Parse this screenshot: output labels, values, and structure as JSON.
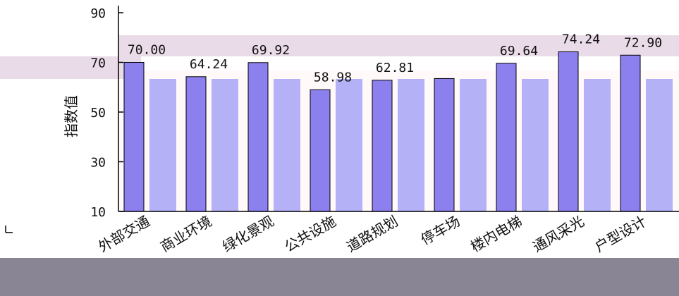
{
  "chart_data": {
    "type": "bar",
    "categories": [
      "外部交通",
      "商业环境",
      "绿化景观",
      "公共设施",
      "道路规划",
      "停车场",
      "楼内电梯",
      "通风采光",
      "户型设计"
    ],
    "series": [
      {
        "values": [
          70.0,
          64.24,
          69.92,
          58.98,
          62.81,
          63.5,
          69.64,
          74.24,
          72.9
        ]
      },
      {
        "values": [
          null,
          null,
          null,
          null,
          null,
          null,
          null,
          null,
          null
        ]
      }
    ],
    "data_labels": [
      "70.00",
      "64.24",
      "69.92",
      "58.98",
      "62.81",
      "",
      "69.64",
      "74.24",
      "72.90"
    ],
    "ylabel": "指数值",
    "ylim": [
      10,
      90
    ],
    "yticks": [
      "10",
      "30",
      "50",
      "70",
      "90"
    ],
    "grid": false,
    "legend": "none",
    "colors": {
      "bar_dark": "#8c80ee",
      "bar_light": "#b4b1f7",
      "plot_bg": "#fff9f9",
      "band_pink": "#eadbe8",
      "bottom_band": "#8a8594",
      "axis": "#000000"
    }
  }
}
